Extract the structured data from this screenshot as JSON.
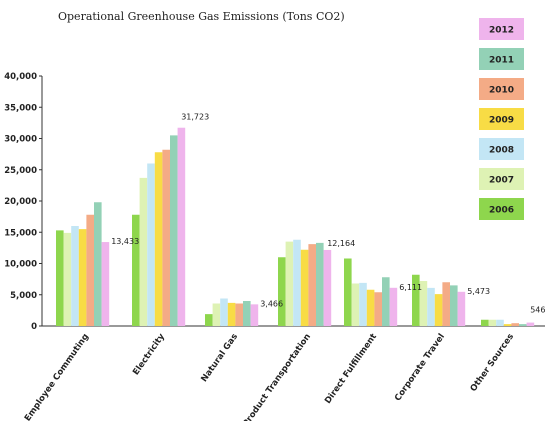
{
  "chart_data": {
    "type": "bar",
    "title": "Operational Greenhouse Gas Emissions (Tons CO2)",
    "xlabel": "",
    "ylabel": "",
    "ylim": [
      0,
      40000
    ],
    "yticks": [
      "0",
      "5,000",
      "10,000",
      "15,000",
      "20,000",
      "25,000",
      "30,000",
      "35,000",
      "40,000"
    ],
    "grid": false,
    "legend_placement": "right",
    "categories": [
      "Employee Commuting",
      "Electricity",
      "Natural Gas",
      "Product Transportation",
      "Direct Fulfillment",
      "Corporate Travel",
      "Other Sources"
    ],
    "series": [
      {
        "name": "2006",
        "color": "#8ed64d",
        "values": [
          15300,
          17800,
          1900,
          11000,
          10800,
          8200,
          1000
        ]
      },
      {
        "name": "2007",
        "color": "#def2b4",
        "values": [
          14900,
          23700,
          3600,
          13500,
          6800,
          7200,
          1000
        ]
      },
      {
        "name": "2008",
        "color": "#c3e6f5",
        "values": [
          16000,
          26000,
          4400,
          13800,
          6900,
          6100,
          1000
        ]
      },
      {
        "name": "2009",
        "color": "#f8dc45",
        "values": [
          15500,
          27800,
          3700,
          12200,
          5800,
          5100,
          300
        ]
      },
      {
        "name": "2010",
        "color": "#f4ab86",
        "values": [
          17800,
          28200,
          3600,
          13100,
          5400,
          7000,
          450
        ]
      },
      {
        "name": "2011",
        "color": "#93d1b6",
        "values": [
          19800,
          30500,
          4000,
          13300,
          7800,
          6500,
          300
        ]
      },
      {
        "name": "2012",
        "color": "#efb4ec",
        "values": [
          13433,
          31723,
          3466,
          12164,
          6111,
          5473,
          546
        ]
      }
    ],
    "data_labels": [
      "13,433",
      "31,723",
      "3,466",
      "12,164",
      "6,111",
      "5,473",
      "546"
    ],
    "legend_order": [
      "2012",
      "2011",
      "2010",
      "2009",
      "2008",
      "2007",
      "2006"
    ]
  }
}
